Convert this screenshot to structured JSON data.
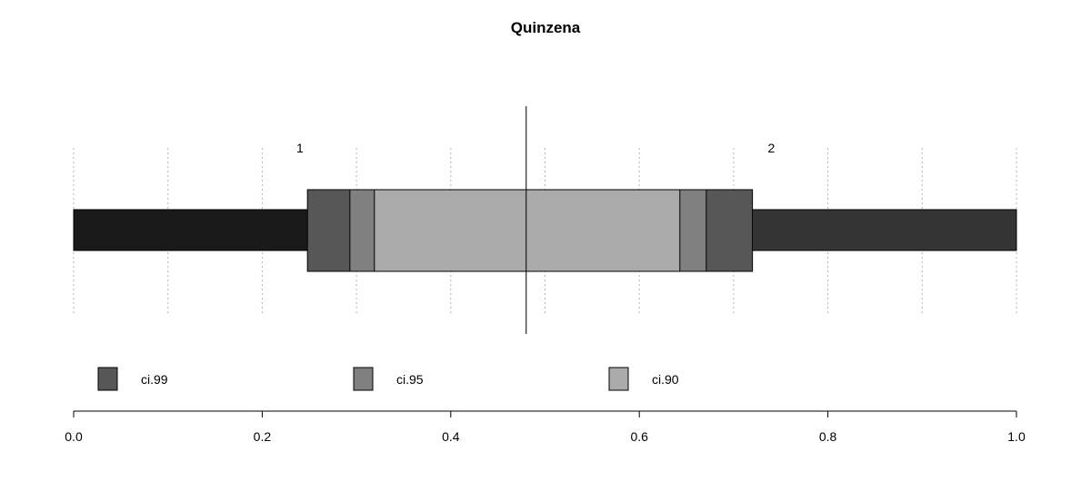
{
  "chart_data": {
    "type": "bar",
    "title": "Quinzena",
    "xlabel": "",
    "ylabel": "",
    "xlim": [
      0.0,
      1.0
    ],
    "x_ticks": [
      "0.0",
      "0.2",
      "0.4",
      "0.6",
      "0.8",
      "1.0"
    ],
    "x_tick_values": [
      0.0,
      0.2,
      0.4,
      0.6,
      0.8,
      1.0
    ],
    "grid": true,
    "categories": [
      "1",
      "2"
    ],
    "segments": [
      {
        "name": "1",
        "start": 0.0,
        "end": 0.48,
        "color": "#1a1a1a"
      },
      {
        "name": "2",
        "start": 0.48,
        "end": 1.0,
        "color": "#353535"
      }
    ],
    "point_estimate": 0.48,
    "intervals": [
      {
        "name": "ci.99",
        "lower": 0.248,
        "upper": 0.72,
        "color": "#575757"
      },
      {
        "name": "ci.95",
        "lower": 0.293,
        "upper": 0.671,
        "color": "#808080"
      },
      {
        "name": "ci.90",
        "lower": 0.319,
        "upper": 0.643,
        "color": "#aaaaaa"
      }
    ],
    "legend_position": "bottom"
  }
}
